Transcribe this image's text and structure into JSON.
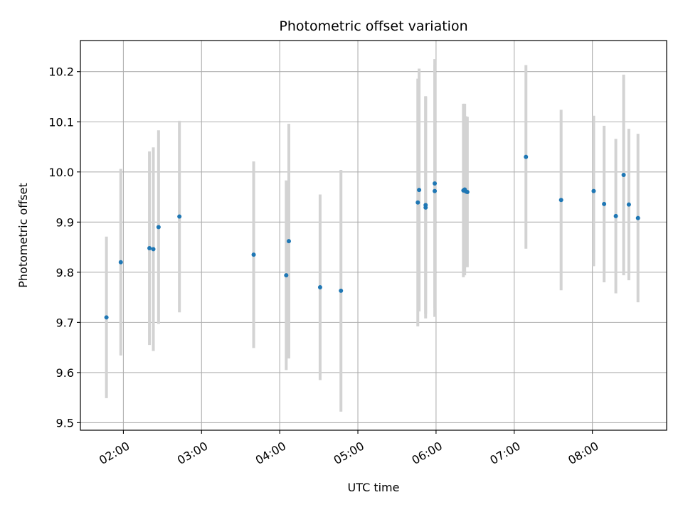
{
  "chart_data": {
    "type": "scatter",
    "title": "Photometric offset variation",
    "xlabel": "UTC time",
    "ylabel": "Photometric offset",
    "grid": true,
    "xlim": [
      "01:27",
      "08:57"
    ],
    "ylim": [
      9.485,
      10.262
    ],
    "x_ticks": [
      "02:00",
      "03:00",
      "04:00",
      "05:00",
      "06:00",
      "07:00",
      "08:00"
    ],
    "y_ticks": [
      "9.5",
      "9.6",
      "9.7",
      "9.8",
      "9.9",
      "10.0",
      "10.1",
      "10.2"
    ],
    "colors": {
      "point": "#1f77b4",
      "errorbar": "#d3d3d3",
      "grid": "#b0b0b0"
    },
    "series": [
      {
        "points": [
          {
            "x": "01:47",
            "y": 9.71,
            "err": 0.161
          },
          {
            "x": "01:58",
            "y": 9.82,
            "err": 0.186
          },
          {
            "x": "02:20",
            "y": 9.848,
            "err": 0.193
          },
          {
            "x": "02:23",
            "y": 9.846,
            "err": 0.203
          },
          {
            "x": "02:27",
            "y": 9.89,
            "err": 0.193
          },
          {
            "x": "02:43",
            "y": 9.911,
            "err": 0.191
          },
          {
            "x": "03:40",
            "y": 9.835,
            "err": 0.186
          },
          {
            "x": "04:05",
            "y": 9.794,
            "err": 0.189
          },
          {
            "x": "04:07",
            "y": 9.862,
            "err": 0.234
          },
          {
            "x": "04:31",
            "y": 9.77,
            "err": 0.185
          },
          {
            "x": "04:47",
            "y": 9.763,
            "err": 0.241
          },
          {
            "x": "05:46",
            "y": 9.939,
            "err": 0.247
          },
          {
            "x": "05:47",
            "y": 9.964,
            "err": 0.242
          },
          {
            "x": "05:52",
            "y": 9.934,
            "err": 0.217
          },
          {
            "x": "05:52",
            "y": 9.929,
            "err": 0.221
          },
          {
            "x": "05:59",
            "y": 9.962,
            "err": 0.251
          },
          {
            "x": "05:59",
            "y": 9.977,
            "err": 0.248
          },
          {
            "x": "06:21",
            "y": 9.963,
            "err": 0.173
          },
          {
            "x": "06:22",
            "y": 9.965,
            "err": 0.171
          },
          {
            "x": "06:23",
            "y": 9.961,
            "err": 0.15
          },
          {
            "x": "06:24",
            "y": 9.96,
            "err": 0.15
          },
          {
            "x": "07:09",
            "y": 10.03,
            "err": 0.183
          },
          {
            "x": "07:36",
            "y": 9.944,
            "err": 0.18
          },
          {
            "x": "08:01",
            "y": 9.962,
            "err": 0.15
          },
          {
            "x": "08:09",
            "y": 9.936,
            "err": 0.156
          },
          {
            "x": "08:18",
            "y": 9.912,
            "err": 0.154
          },
          {
            "x": "08:24",
            "y": 9.994,
            "err": 0.2
          },
          {
            "x": "08:28",
            "y": 9.935,
            "err": 0.151
          },
          {
            "x": "08:35",
            "y": 9.908,
            "err": 0.168
          }
        ]
      }
    ]
  }
}
